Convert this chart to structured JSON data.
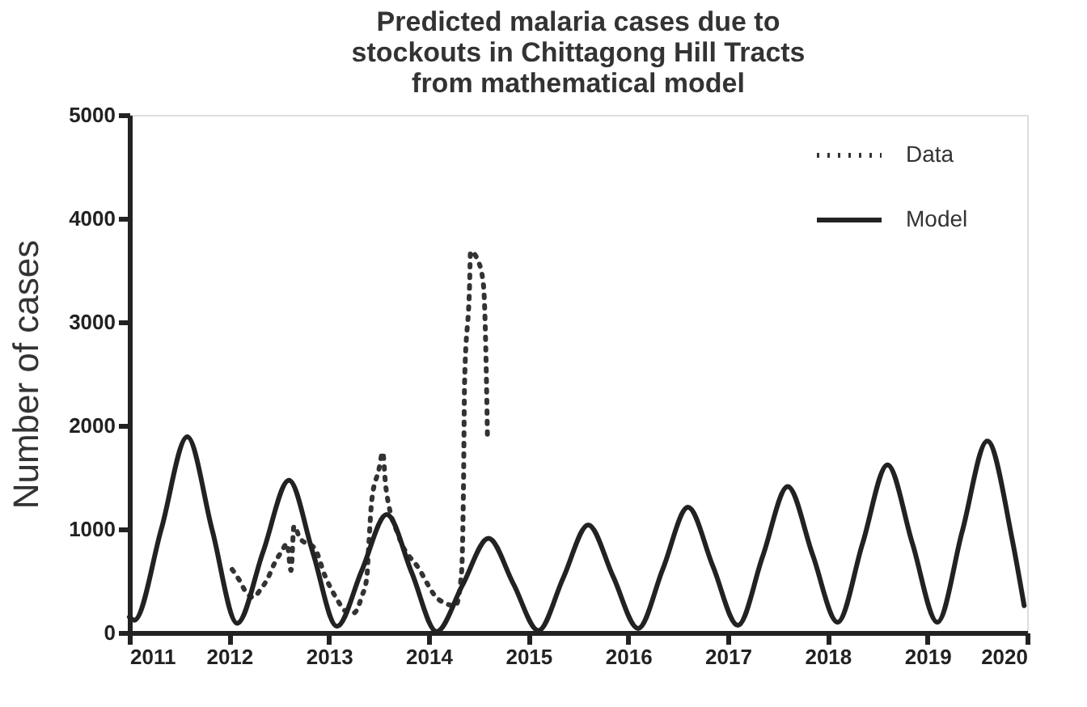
{
  "chart_data": {
    "type": "line",
    "title": "Predicted malaria cases due to stockouts in Chittagong Hill Tracts from mathematical model",
    "ylabel": "Number of cases",
    "xlim": [
      2011,
      2020
    ],
    "xticks": [
      2011,
      2012,
      2013,
      2014,
      2015,
      2016,
      2017,
      2018,
      2019,
      2020
    ],
    "ylim": [
      0,
      5000
    ],
    "yticks": [
      0,
      1000,
      2000,
      3000,
      4000,
      5000
    ],
    "grid": false,
    "legend": "top right",
    "series": [
      {
        "name": "Data",
        "color": "#333333",
        "line_style": "dotted",
        "x": [
          2012.03,
          2012.1,
          2012.17,
          2012.24,
          2012.31,
          2012.39,
          2012.45,
          2012.53,
          2012.58,
          2012.62,
          2012.65,
          2012.71,
          2012.86,
          2012.96,
          2013.07,
          2013.18,
          2013.25,
          2013.33,
          2013.38,
          2013.4,
          2013.43,
          2013.5,
          2013.54,
          2013.57,
          2013.7,
          2013.9,
          2014.1,
          2014.27,
          2014.33,
          2014.35,
          2014.36,
          2014.41,
          2014.42,
          2014.5,
          2014.55,
          2014.58,
          2014.59
        ],
        "values": [
          610,
          510,
          390,
          340,
          410,
          530,
          660,
          790,
          860,
          600,
          1030,
          910,
          810,
          550,
          340,
          200,
          190,
          350,
          530,
          850,
          1280,
          1570,
          1740,
          1410,
          930,
          620,
          320,
          260,
          580,
          1470,
          2410,
          3350,
          3680,
          3580,
          3350,
          2410,
          1850
        ]
      },
      {
        "name": "Model",
        "color": "#222222",
        "line_style": "solid",
        "x": [
          2011.0,
          2011.05,
          2011.32,
          2011.58,
          2011.83,
          2012.08,
          2012.34,
          2012.6,
          2012.84,
          2013.08,
          2013.33,
          2013.58,
          2013.83,
          2014.08,
          2014.34,
          2014.6,
          2014.85,
          2015.1,
          2015.35,
          2015.6,
          2015.85,
          2016.1,
          2016.35,
          2016.6,
          2016.85,
          2017.1,
          2017.35,
          2017.6,
          2017.85,
          2018.1,
          2018.35,
          2018.6,
          2018.85,
          2019.1,
          2019.35,
          2019.6,
          2019.85,
          2019.97
        ],
        "values": [
          150,
          120,
          1000,
          1890,
          990,
          90,
          780,
          1470,
          770,
          60,
          600,
          1140,
          580,
          10,
          460,
          910,
          470,
          20,
          530,
          1040,
          540,
          40,
          620,
          1210,
          640,
          70,
          740,
          1410,
          750,
          100,
          860,
          1620,
          860,
          100,
          980,
          1850,
          900,
          260
        ]
      }
    ]
  }
}
